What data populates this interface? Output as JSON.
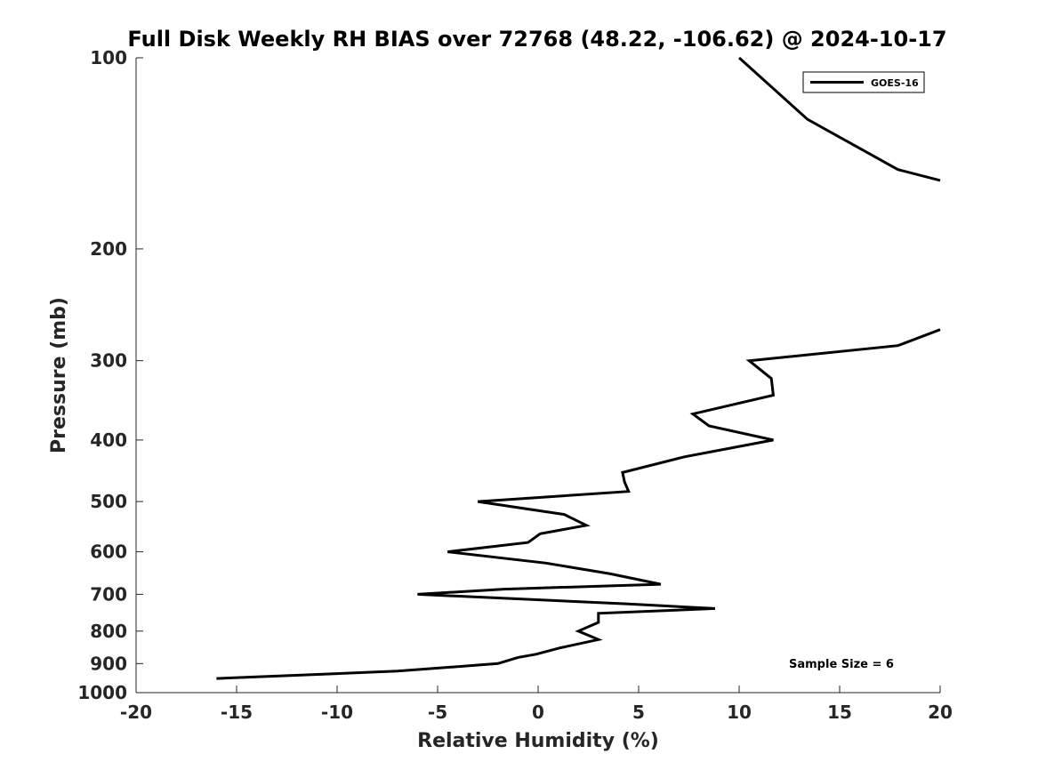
{
  "chart_data": {
    "type": "line",
    "title": "Full Disk Weekly RH BIAS over 72768 (48.22, -106.62) @ 2024-10-17",
    "xlabel": "Relative Humidity (%)",
    "ylabel": "Pressure (mb)",
    "xlim": [
      -20,
      20
    ],
    "ylim": [
      100,
      1000
    ],
    "y_scale": "log",
    "y_reversed": true,
    "x_ticks": [
      "-20",
      "-15",
      "-10",
      "-5",
      "0",
      "5",
      "10",
      "15",
      "20"
    ],
    "y_ticks": [
      "100",
      "200",
      "300",
      "400",
      "500",
      "600",
      "700",
      "800",
      "900",
      "1000"
    ],
    "grid": false,
    "legend_position": "top-right",
    "series": [
      {
        "name": "GOES-16",
        "color": "#000000",
        "segments": [
          [
            {
              "x": 10.0,
              "y": 100
            },
            {
              "x": 13.4,
              "y": 125
            },
            {
              "x": 17.9,
              "y": 150
            },
            {
              "x": 20.0,
              "y": 156
            }
          ],
          [
            {
              "x": 20.0,
              "y": 268
            },
            {
              "x": 17.9,
              "y": 284
            },
            {
              "x": 10.5,
              "y": 300
            },
            {
              "x": 11.6,
              "y": 320
            },
            {
              "x": 11.7,
              "y": 340
            },
            {
              "x": 7.7,
              "y": 364
            },
            {
              "x": 8.5,
              "y": 380
            },
            {
              "x": 11.7,
              "y": 400
            },
            {
              "x": 7.3,
              "y": 425
            },
            {
              "x": 4.2,
              "y": 450
            },
            {
              "x": 4.3,
              "y": 466
            },
            {
              "x": 4.5,
              "y": 482
            },
            {
              "x": -3.0,
              "y": 500
            },
            {
              "x": 1.3,
              "y": 524
            },
            {
              "x": 2.4,
              "y": 545
            },
            {
              "x": 0.1,
              "y": 562
            },
            {
              "x": -0.5,
              "y": 580
            },
            {
              "x": -4.5,
              "y": 600
            },
            {
              "x": 0.4,
              "y": 625
            },
            {
              "x": 3.6,
              "y": 650
            },
            {
              "x": 6.1,
              "y": 675
            },
            {
              "x": -1.7,
              "y": 687
            },
            {
              "x": -6.0,
              "y": 700
            },
            {
              "x": 4.5,
              "y": 725
            },
            {
              "x": 8.8,
              "y": 737
            },
            {
              "x": 3.0,
              "y": 750
            },
            {
              "x": 3.0,
              "y": 775
            },
            {
              "x": 2.0,
              "y": 800
            },
            {
              "x": 3.0,
              "y": 825
            },
            {
              "x": 1.1,
              "y": 850
            },
            {
              "x": -0.1,
              "y": 870
            },
            {
              "x": -1.0,
              "y": 880
            },
            {
              "x": -2.0,
              "y": 900
            },
            {
              "x": -7.0,
              "y": 925
            },
            {
              "x": -16.0,
              "y": 950
            }
          ]
        ]
      }
    ],
    "annotations": [
      "Sample Size = 6"
    ]
  }
}
